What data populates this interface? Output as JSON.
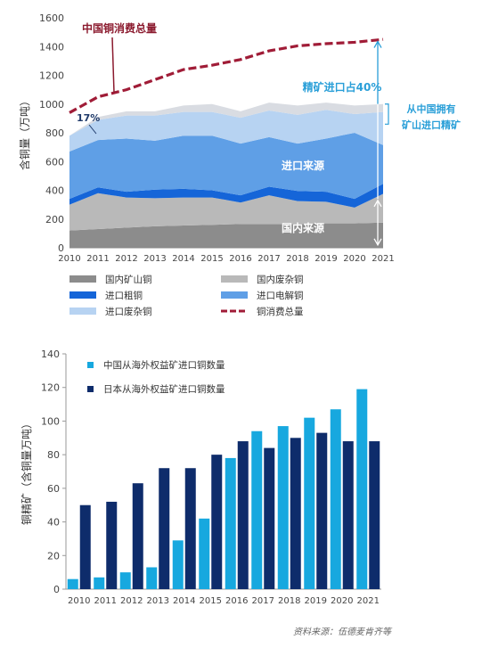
{
  "chart_data": [
    {
      "type": "area",
      "ylabel": "含铜量（万吨）",
      "ylim": [
        0,
        1600
      ],
      "yticks": [
        0,
        200,
        400,
        600,
        800,
        1000,
        1200,
        1400,
        1600
      ],
      "x": [
        "2010",
        "2011",
        "2012",
        "2013",
        "2014",
        "2015",
        "2016",
        "2017",
        "2018",
        "2019",
        "2020",
        "2021"
      ],
      "grid": false,
      "legend_position": "bottom",
      "stack_series": [
        {
          "name": "国内矿山铜",
          "color": "#8c8c8c",
          "values": [
            120,
            130,
            140,
            150,
            155,
            160,
            165,
            165,
            165,
            170,
            170,
            175
          ]
        },
        {
          "name": "国内废杂铜",
          "color": "#b9b9b9",
          "values": [
            180,
            250,
            210,
            195,
            195,
            190,
            150,
            200,
            160,
            150,
            110,
            200
          ]
        },
        {
          "name": "进口粗铜",
          "color": "#1565d8",
          "values": [
            40,
            40,
            40,
            60,
            60,
            50,
            50,
            60,
            70,
            70,
            60,
            70
          ]
        },
        {
          "name": "进口电解铜",
          "color": "#5f9fe6",
          "values": [
            330,
            330,
            370,
            340,
            370,
            380,
            360,
            345,
            330,
            370,
            460,
            270
          ]
        },
        {
          "name": "进口废杂铜",
          "color": "#b7d3f2",
          "values": [
            110,
            140,
            160,
            175,
            165,
            165,
            180,
            185,
            200,
            200,
            130,
            230
          ]
        },
        {
          "name": "",
          "color": "#d9dce2",
          "values": [
            0,
            20,
            30,
            30,
            45,
            55,
            45,
            55,
            65,
            50,
            60,
            55
          ]
        }
      ],
      "line_series": {
        "name": "铜消费总量",
        "color": "#a01c37",
        "values": [
          940,
          1050,
          1100,
          1170,
          1240,
          1270,
          1310,
          1370,
          1405,
          1420,
          1430,
          1450
        ]
      },
      "legend": [
        {
          "name": "国内矿山铜",
          "color": "#8c8c8c"
        },
        {
          "name": "国内废杂铜",
          "color": "#b9b9b9"
        },
        {
          "name": "进口粗铜",
          "color": "#1565d8"
        },
        {
          "name": "进口电解铜",
          "color": "#5f9fe6"
        },
        {
          "name": "进口废杂铜",
          "color": "#b7d3f2"
        },
        {
          "name": "铜消费总量",
          "color": "#a01c37"
        }
      ],
      "annotations": {
        "total_label": "中国铜消费总量",
        "pct_2010": "17%",
        "concentrate_share": "精矿进口占40%",
        "overseas_note": "从中国拥有\n矿山进口精矿",
        "import_source": "进口来源",
        "domestic_source": "国内来源"
      }
    },
    {
      "type": "bar",
      "ylabel": "铜精矿（含铜量万吨）",
      "ylim": [
        0,
        140
      ],
      "yticks": [
        0,
        20,
        40,
        60,
        80,
        100,
        120,
        140
      ],
      "categories": [
        "2010",
        "2011",
        "2012",
        "2013",
        "2014",
        "2015",
        "2016",
        "2017",
        "2018",
        "2019",
        "2020",
        "2021"
      ],
      "grid": false,
      "legend_position": "top-left",
      "series": [
        {
          "name": "中国从海外权益矿进口铜数量",
          "color": "#17a8df",
          "values": [
            6,
            7,
            10,
            13,
            29,
            42,
            78,
            94,
            97,
            102,
            107,
            119
          ]
        },
        {
          "name": "日本从海外权益矿进口铜数量",
          "color": "#0e2c6b",
          "values": [
            50,
            52,
            63,
            72,
            72,
            80,
            88,
            84,
            90,
            93,
            88,
            88
          ]
        }
      ]
    }
  ],
  "source": "资料来源：伍德麦肯齐等"
}
